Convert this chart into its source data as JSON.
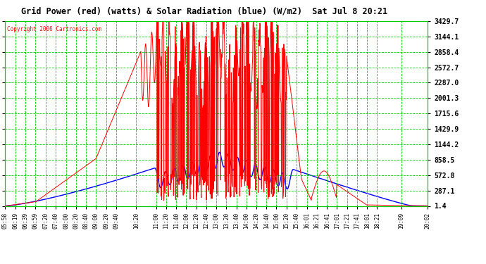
{
  "title": "Grid Power (red) (watts) & Solar Radiation (blue) (W/m2)  Sat Jul 8 20:21",
  "copyright": "Copyright 2006 Cartronics.com",
  "fig_bg_color": "#ffffff",
  "plot_bg_color": "#ffffff",
  "grid_color": "#00cc00",
  "title_color": "#000000",
  "red_line_color": "#ff0000",
  "blue_line_color": "#0000ff",
  "copyright_color": "#ff0000",
  "ytick_labels": [
    "1.4",
    "287.1",
    "572.8",
    "858.5",
    "1144.2",
    "1429.9",
    "1715.6",
    "2001.3",
    "2287.0",
    "2572.7",
    "2858.4",
    "3144.1",
    "3429.7"
  ],
  "ytick_values": [
    1.4,
    287.1,
    572.8,
    858.5,
    1144.2,
    1429.9,
    1715.6,
    2001.3,
    2287.0,
    2572.7,
    2858.4,
    3144.1,
    3429.7
  ],
  "xtick_labels": [
    "05:58",
    "06:19",
    "06:39",
    "06:59",
    "07:20",
    "07:40",
    "08:00",
    "08:20",
    "08:40",
    "09:00",
    "09:20",
    "09:40",
    "10:20",
    "11:00",
    "11:20",
    "11:40",
    "12:00",
    "12:20",
    "12:40",
    "13:00",
    "13:20",
    "13:40",
    "14:00",
    "14:20",
    "14:40",
    "15:00",
    "15:20",
    "15:40",
    "16:01",
    "16:21",
    "16:41",
    "17:01",
    "17:21",
    "17:41",
    "18:01",
    "18:21",
    "19:09",
    "20:02"
  ],
  "ymin": 1.4,
  "ymax": 3429.7
}
